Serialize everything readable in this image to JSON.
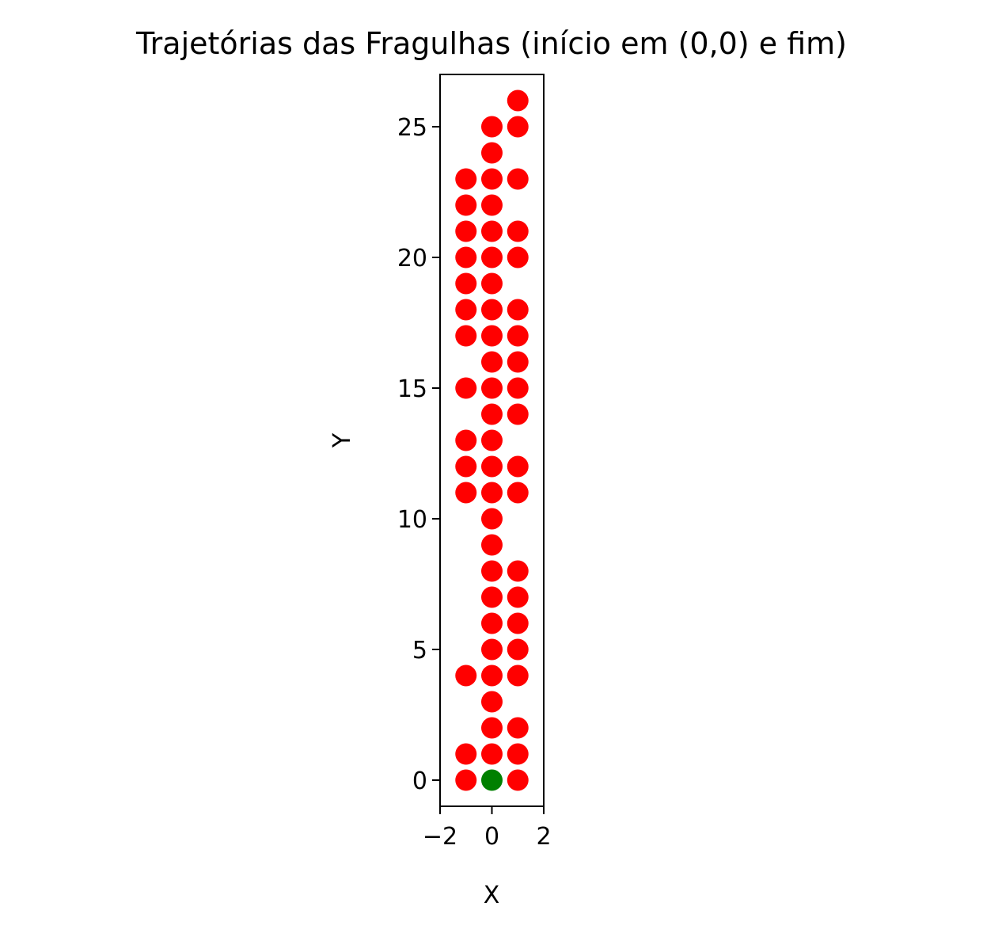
{
  "chart_data": {
    "type": "scatter",
    "title": "Trajetórias das Fragulhas (início em (0,0) e fim)",
    "xlabel": "X",
    "ylabel": "Y",
    "xlim": [
      -2,
      2
    ],
    "ylim": [
      -1,
      27
    ],
    "xticks": [
      -2,
      0,
      2
    ],
    "xtick_labels": [
      "−2",
      "0",
      "2"
    ],
    "yticks": [
      0,
      5,
      10,
      15,
      20,
      25
    ],
    "ytick_labels": [
      "0",
      "5",
      "10",
      "15",
      "20",
      "25"
    ],
    "grid": false,
    "legend": "none",
    "series": [
      {
        "color": "#ff0000",
        "points": [
          [
            -1,
            0
          ],
          [
            1,
            0
          ],
          [
            -1,
            1
          ],
          [
            0,
            1
          ],
          [
            1,
            1
          ],
          [
            0,
            2
          ],
          [
            1,
            2
          ],
          [
            0,
            3
          ],
          [
            -1,
            4
          ],
          [
            0,
            4
          ],
          [
            1,
            4
          ],
          [
            0,
            5
          ],
          [
            1,
            5
          ],
          [
            0,
            6
          ],
          [
            1,
            6
          ],
          [
            0,
            7
          ],
          [
            1,
            7
          ],
          [
            0,
            8
          ],
          [
            1,
            8
          ],
          [
            0,
            9
          ],
          [
            0,
            10
          ],
          [
            -1,
            11
          ],
          [
            0,
            11
          ],
          [
            1,
            11
          ],
          [
            -1,
            12
          ],
          [
            0,
            12
          ],
          [
            1,
            12
          ],
          [
            -1,
            13
          ],
          [
            0,
            13
          ],
          [
            0,
            14
          ],
          [
            1,
            14
          ],
          [
            -1,
            15
          ],
          [
            0,
            15
          ],
          [
            1,
            15
          ],
          [
            0,
            16
          ],
          [
            1,
            16
          ],
          [
            -1,
            17
          ],
          [
            0,
            17
          ],
          [
            1,
            17
          ],
          [
            -1,
            18
          ],
          [
            0,
            18
          ],
          [
            1,
            18
          ],
          [
            -1,
            19
          ],
          [
            0,
            19
          ],
          [
            -1,
            20
          ],
          [
            0,
            20
          ],
          [
            1,
            20
          ],
          [
            -1,
            21
          ],
          [
            0,
            21
          ],
          [
            1,
            21
          ],
          [
            -1,
            22
          ],
          [
            0,
            22
          ],
          [
            -1,
            23
          ],
          [
            0,
            23
          ],
          [
            1,
            23
          ],
          [
            0,
            24
          ],
          [
            0,
            25
          ],
          [
            1,
            25
          ],
          [
            1,
            26
          ]
        ]
      },
      {
        "color": "#008000",
        "points": [
          [
            0,
            0
          ]
        ]
      }
    ]
  }
}
